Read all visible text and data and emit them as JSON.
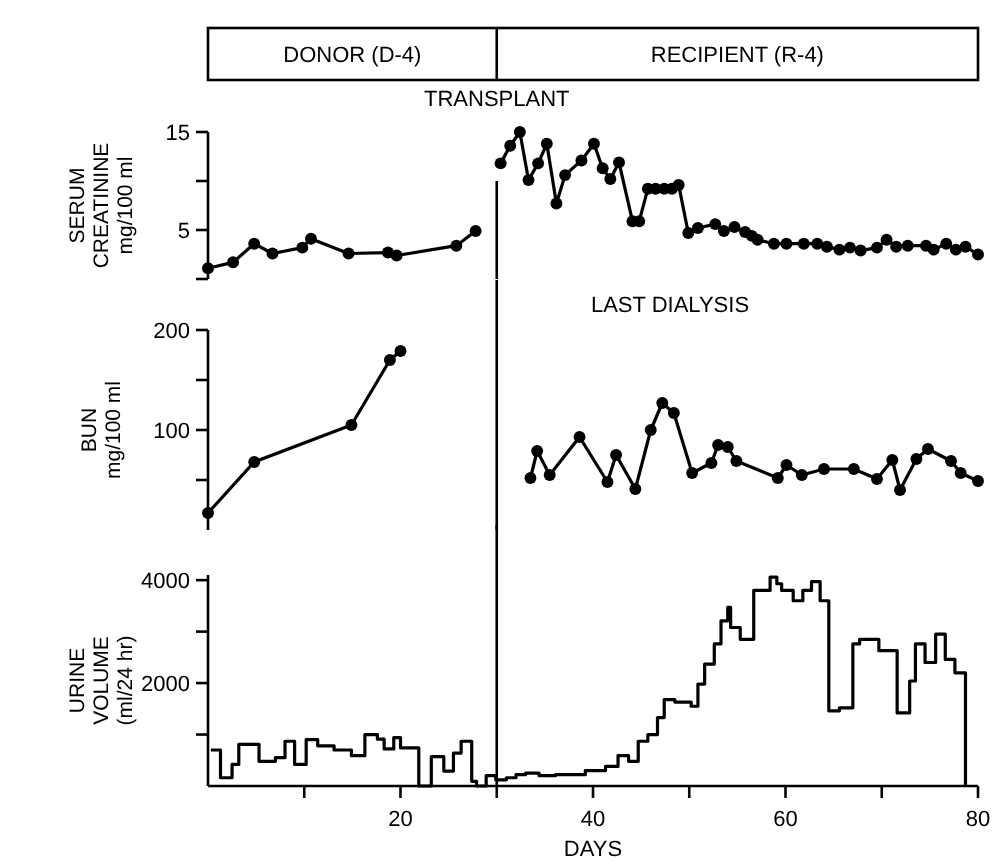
{
  "chart_data": [
    {
      "type": "line",
      "ylabel": "SERUM\nCREATININE\nmg/100 ml",
      "xlim": [
        0,
        80
      ],
      "ylim": [
        0,
        15
      ],
      "yticks": [
        {
          "value": 0,
          "label": null
        },
        5,
        {
          "value": 10,
          "label": null
        },
        15
      ],
      "tick_labels": "y",
      "marker": "circle",
      "line_style": "solid",
      "annotations": [
        "DONOR (D-4)",
        "RECIPIENT (R-4)"
      ],
      "ref_lines": [
        {
          "axis": "x",
          "value": 30,
          "label": "TRANSPLANT"
        }
      ],
      "series": [
        {
          "color": "#000000",
          "x": [
            0,
            2.6,
            4.8,
            6.7,
            9.8,
            10.7,
            14.6,
            18.7,
            19.6,
            25.8,
            27.8
          ],
          "values": [
            1.1,
            1.7,
            3.6,
            2.6,
            3.2,
            4.1,
            2.6,
            2.7,
            2.4,
            3.4,
            4.9
          ]
        },
        {
          "color": "#000000",
          "x": [
            30.4,
            31.4,
            32.4,
            33.3,
            34.3,
            35.2,
            36.2,
            37.1,
            38.8,
            40.1,
            41.0,
            41.8,
            42.7,
            44.1,
            44.8,
            45.7,
            46.5,
            47.4,
            48.2,
            48.9,
            49.9,
            50.9,
            52.7,
            53.6,
            54.7,
            55.8,
            56.5,
            57.1,
            58.8,
            60.1,
            61.9,
            63.3,
            64.3,
            65.6,
            66.7,
            67.8,
            69.5,
            70.5,
            71.5,
            72.7,
            74.6,
            75.4,
            76.7,
            77.7,
            78.7,
            80
          ],
          "values": [
            11.8,
            13.6,
            15,
            10.1,
            11.8,
            13.8,
            7.7,
            10.6,
            12.1,
            13.8,
            11.3,
            10.2,
            11.9,
            5.9,
            5.9,
            9.2,
            9.2,
            9.2,
            9.2,
            9.6,
            4.7,
            5.2,
            5.6,
            4.9,
            5.3,
            4.8,
            4.4,
            4.0,
            3.6,
            3.6,
            3.6,
            3.6,
            3.3,
            3.0,
            3.2,
            2.9,
            3.2,
            4.0,
            3.3,
            3.4,
            3.4,
            3.0,
            3.6,
            3.0,
            3.3,
            2.5
          ]
        }
      ]
    },
    {
      "type": "line",
      "ylabel": "BUN\nmg/100 ml",
      "xlim": [
        0,
        80
      ],
      "ylim": [
        0,
        200
      ],
      "yticks": [
        {
          "value": 50,
          "label": null
        },
        100,
        {
          "value": 150,
          "label": null
        },
        200
      ],
      "tick_labels": "y",
      "marker": "circle",
      "line_style": "solid",
      "ref_lines": [
        {
          "axis": "x",
          "value": 30,
          "label": null
        }
      ],
      "annotations": [
        "LAST DIALYSIS"
      ],
      "series": [
        {
          "color": "#000000",
          "x": [
            0,
            4.8,
            14.9,
            18.9,
            20.0
          ],
          "values": [
            17,
            68,
            105,
            170,
            179
          ]
        },
        {
          "color": "#000000",
          "x": [
            33.5,
            34.2,
            35.5,
            38.6,
            41.5,
            42.4,
            44.4,
            46.0,
            47.2,
            48.4,
            50.3,
            52.3,
            53.0,
            54.0,
            54.9,
            59.2,
            60.1,
            61.7,
            64.0,
            67.1,
            69.5,
            71.1,
            71.9,
            73.6,
            74.8,
            77.2,
            78.2,
            80.0
          ],
          "values": [
            52,
            79,
            55,
            93,
            48,
            75,
            41,
            100,
            127,
            117,
            57,
            67,
            85,
            83,
            69,
            52,
            65,
            55,
            61,
            61,
            51,
            70,
            40,
            71,
            81,
            69,
            57,
            49
          ]
        }
      ]
    },
    {
      "type": "step",
      "ylabel": "URINE\nVOLUME\n(ml/24 hr)",
      "xlabel": "DAYS",
      "xlim": [
        0,
        80
      ],
      "ylim": [
        0,
        4100
      ],
      "yticks": [
        {
          "value": 1000,
          "label": null
        },
        2000,
        {
          "value": 3000,
          "label": null
        },
        4000
      ],
      "xticks": [
        {
          "value": 10,
          "label": null
        },
        20,
        {
          "value": 30,
          "label": null
        },
        40,
        {
          "value": 50,
          "label": null
        },
        60,
        {
          "value": 70,
          "label": null
        },
        80
      ],
      "line_style": "solid",
      "ref_lines": [
        {
          "axis": "x",
          "value": 30,
          "label": null
        }
      ],
      "series": [
        {
          "color": "#000000",
          "x": [
            0.3,
            1.3,
            2.5,
            3.2,
            5.3,
            7.0,
            8.0,
            9.0,
            10.2,
            11.4,
            13.1,
            14.9,
            16.3,
            17.6,
            18.3,
            19.3,
            20.0,
            21.9,
            23.2,
            24.5,
            25.5,
            26.3,
            27.4,
            27.9,
            28.9,
            29.9,
            31.0,
            32.0,
            33.0,
            34.4,
            36.1,
            39.2,
            41.3,
            42.6,
            43.7,
            44.7,
            45.7,
            46.7,
            47.4,
            48.5,
            50.2,
            50.9,
            51.6,
            52.6,
            53.3,
            54.0,
            54.3,
            55.3,
            56.7,
            58.4,
            59.1,
            59.6,
            60.8,
            61.8,
            62.7,
            63.6,
            64.5,
            65.6,
            67.0,
            67.7,
            69.7,
            71.6,
            72.9,
            73.5,
            74.5,
            75.6,
            76.6,
            77.6,
            78.7
          ],
          "values": [
            700,
            160,
            420,
            810,
            480,
            550,
            870,
            420,
            900,
            780,
            700,
            590,
            1000,
            910,
            720,
            940,
            740,
            0,
            570,
            290,
            640,
            870,
            90,
            0,
            200,
            120,
            160,
            220,
            250,
            200,
            220,
            300,
            380,
            590,
            480,
            870,
            1000,
            1330,
            1680,
            1630,
            1550,
            1980,
            2370,
            2760,
            3210,
            3470,
            3080,
            2850,
            3800,
            4060,
            3930,
            3800,
            3600,
            3800,
            3970,
            3600,
            1460,
            1520,
            2760,
            2850,
            2630,
            1420,
            2040,
            2760,
            2400,
            2950,
            2460,
            2200,
            0
          ]
        }
      ]
    }
  ]
}
